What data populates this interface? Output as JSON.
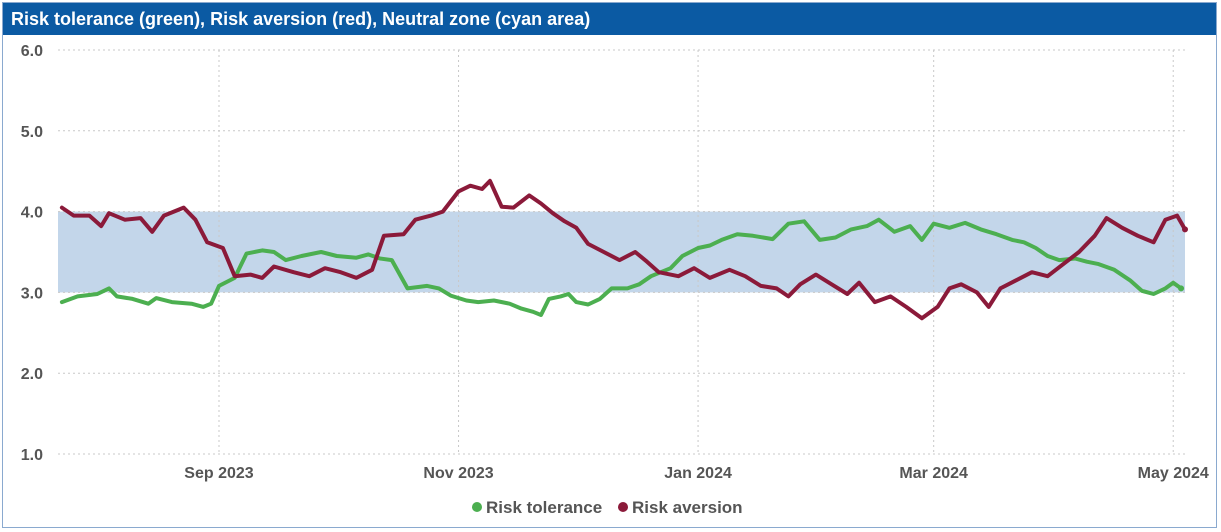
{
  "title": "Risk tolerance (green), Risk aversion (red), Neutral zone (cyan area)",
  "colors": {
    "title_bg": "#0b5aa3",
    "risk_tolerance": "#4caf50",
    "risk_aversion": "#8b1a3a",
    "neutral_zone": "#c3d6ea",
    "grid": "#c8c8c8"
  },
  "legend": [
    "Risk tolerance",
    "Risk aversion"
  ],
  "chart_data": {
    "type": "line",
    "title": "Risk tolerance (green), Risk aversion (red), Neutral zone (cyan area)",
    "xlabel": "",
    "ylabel": "",
    "xlim": [
      "2023-07-22",
      "2024-05-04"
    ],
    "ylim": [
      1.0,
      6.0
    ],
    "yticks": [
      1.0,
      2.0,
      3.0,
      4.0,
      5.0,
      6.0
    ],
    "ytick_labels": [
      "1.0",
      "2.0",
      "3.0",
      "4.0",
      "5.0",
      "6.0"
    ],
    "xticks": [
      "2023-09-01",
      "2023-11-01",
      "2024-01-01",
      "2024-03-01",
      "2024-05-01"
    ],
    "xtick_labels": [
      "Sep 2023",
      "Nov 2023",
      "Jan 2024",
      "Mar 2024",
      "May 2024"
    ],
    "grid": "dotted",
    "legend_position": "bottom-center",
    "bands": [
      {
        "name": "Neutral zone",
        "from": 3.0,
        "to": 4.0
      }
    ],
    "series": [
      {
        "name": "Risk tolerance",
        "points": [
          [
            "2023-07-23",
            2.88
          ],
          [
            "2023-07-27",
            2.95
          ],
          [
            "2023-08-01",
            2.98
          ],
          [
            "2023-08-04",
            3.05
          ],
          [
            "2023-08-06",
            2.95
          ],
          [
            "2023-08-10",
            2.92
          ],
          [
            "2023-08-14",
            2.86
          ],
          [
            "2023-08-16",
            2.93
          ],
          [
            "2023-08-20",
            2.88
          ],
          [
            "2023-08-25",
            2.86
          ],
          [
            "2023-08-28",
            2.82
          ],
          [
            "2023-08-30",
            2.86
          ],
          [
            "2023-09-01",
            3.08
          ],
          [
            "2023-09-05",
            3.18
          ],
          [
            "2023-09-08",
            3.48
          ],
          [
            "2023-09-12",
            3.52
          ],
          [
            "2023-09-15",
            3.5
          ],
          [
            "2023-09-18",
            3.4
          ],
          [
            "2023-09-22",
            3.45
          ],
          [
            "2023-09-27",
            3.5
          ],
          [
            "2023-10-01",
            3.45
          ],
          [
            "2023-10-06",
            3.43
          ],
          [
            "2023-10-09",
            3.47
          ],
          [
            "2023-10-12",
            3.42
          ],
          [
            "2023-10-15",
            3.4
          ],
          [
            "2023-10-19",
            3.05
          ],
          [
            "2023-10-24",
            3.08
          ],
          [
            "2023-10-27",
            3.05
          ],
          [
            "2023-10-30",
            2.96
          ],
          [
            "2023-11-03",
            2.9
          ],
          [
            "2023-11-06",
            2.88
          ],
          [
            "2023-11-10",
            2.9
          ],
          [
            "2023-11-14",
            2.86
          ],
          [
            "2023-11-17",
            2.8
          ],
          [
            "2023-11-20",
            2.76
          ],
          [
            "2023-11-22",
            2.72
          ],
          [
            "2023-11-24",
            2.92
          ],
          [
            "2023-11-27",
            2.95
          ],
          [
            "2023-11-29",
            2.98
          ],
          [
            "2023-12-01",
            2.88
          ],
          [
            "2023-12-04",
            2.85
          ],
          [
            "2023-12-07",
            2.92
          ],
          [
            "2023-12-10",
            3.05
          ],
          [
            "2023-12-14",
            3.05
          ],
          [
            "2023-12-17",
            3.1
          ],
          [
            "2023-12-20",
            3.2
          ],
          [
            "2023-12-25",
            3.3
          ],
          [
            "2023-12-28",
            3.45
          ],
          [
            "2024-01-01",
            3.55
          ],
          [
            "2024-01-04",
            3.58
          ],
          [
            "2024-01-07",
            3.65
          ],
          [
            "2024-01-11",
            3.72
          ],
          [
            "2024-01-15",
            3.7
          ],
          [
            "2024-01-20",
            3.66
          ],
          [
            "2024-01-24",
            3.85
          ],
          [
            "2024-01-28",
            3.88
          ],
          [
            "2024-02-01",
            3.65
          ],
          [
            "2024-02-05",
            3.68
          ],
          [
            "2024-02-09",
            3.78
          ],
          [
            "2024-02-13",
            3.82
          ],
          [
            "2024-02-16",
            3.9
          ],
          [
            "2024-02-20",
            3.75
          ],
          [
            "2024-02-24",
            3.82
          ],
          [
            "2024-02-27",
            3.65
          ],
          [
            "2024-03-01",
            3.85
          ],
          [
            "2024-03-05",
            3.8
          ],
          [
            "2024-03-09",
            3.86
          ],
          [
            "2024-03-13",
            3.78
          ],
          [
            "2024-03-17",
            3.72
          ],
          [
            "2024-03-21",
            3.65
          ],
          [
            "2024-03-24",
            3.62
          ],
          [
            "2024-03-27",
            3.55
          ],
          [
            "2024-03-30",
            3.45
          ],
          [
            "2024-04-02",
            3.4
          ],
          [
            "2024-04-06",
            3.42
          ],
          [
            "2024-04-09",
            3.38
          ],
          [
            "2024-04-12",
            3.35
          ],
          [
            "2024-04-16",
            3.28
          ],
          [
            "2024-04-20",
            3.15
          ],
          [
            "2024-04-23",
            3.02
          ],
          [
            "2024-04-26",
            2.98
          ],
          [
            "2024-04-29",
            3.05
          ],
          [
            "2024-05-01",
            3.12
          ],
          [
            "2024-05-03",
            3.05
          ]
        ]
      },
      {
        "name": "Risk aversion",
        "points": [
          [
            "2023-07-23",
            4.05
          ],
          [
            "2023-07-26",
            3.95
          ],
          [
            "2023-07-30",
            3.95
          ],
          [
            "2023-08-02",
            3.82
          ],
          [
            "2023-08-04",
            3.98
          ],
          [
            "2023-08-08",
            3.9
          ],
          [
            "2023-08-12",
            3.92
          ],
          [
            "2023-08-15",
            3.75
          ],
          [
            "2023-08-18",
            3.95
          ],
          [
            "2023-08-23",
            4.05
          ],
          [
            "2023-08-26",
            3.9
          ],
          [
            "2023-08-29",
            3.62
          ],
          [
            "2023-09-02",
            3.55
          ],
          [
            "2023-09-05",
            3.2
          ],
          [
            "2023-09-09",
            3.22
          ],
          [
            "2023-09-12",
            3.18
          ],
          [
            "2023-09-15",
            3.32
          ],
          [
            "2023-09-20",
            3.25
          ],
          [
            "2023-09-24",
            3.2
          ],
          [
            "2023-09-28",
            3.3
          ],
          [
            "2023-10-02",
            3.25
          ],
          [
            "2023-10-06",
            3.18
          ],
          [
            "2023-10-10",
            3.28
          ],
          [
            "2023-10-13",
            3.7
          ],
          [
            "2023-10-18",
            3.72
          ],
          [
            "2023-10-21",
            3.9
          ],
          [
            "2023-10-25",
            3.95
          ],
          [
            "2023-10-28",
            4.0
          ],
          [
            "2023-11-01",
            4.25
          ],
          [
            "2023-11-04",
            4.32
          ],
          [
            "2023-11-07",
            4.28
          ],
          [
            "2023-11-09",
            4.38
          ],
          [
            "2023-11-12",
            4.06
          ],
          [
            "2023-11-15",
            4.05
          ],
          [
            "2023-11-19",
            4.2
          ],
          [
            "2023-11-22",
            4.1
          ],
          [
            "2023-11-25",
            3.98
          ],
          [
            "2023-11-28",
            3.88
          ],
          [
            "2023-12-01",
            3.8
          ],
          [
            "2023-12-04",
            3.6
          ],
          [
            "2023-12-08",
            3.5
          ],
          [
            "2023-12-12",
            3.4
          ],
          [
            "2023-12-16",
            3.5
          ],
          [
            "2023-12-19",
            3.38
          ],
          [
            "2023-12-22",
            3.25
          ],
          [
            "2023-12-27",
            3.2
          ],
          [
            "2023-12-31",
            3.3
          ],
          [
            "2024-01-04",
            3.18
          ],
          [
            "2024-01-09",
            3.28
          ],
          [
            "2024-01-13",
            3.2
          ],
          [
            "2024-01-17",
            3.08
          ],
          [
            "2024-01-21",
            3.05
          ],
          [
            "2024-01-24",
            2.95
          ],
          [
            "2024-01-27",
            3.1
          ],
          [
            "2024-01-31",
            3.22
          ],
          [
            "2024-02-04",
            3.1
          ],
          [
            "2024-02-08",
            2.98
          ],
          [
            "2024-02-11",
            3.12
          ],
          [
            "2024-02-15",
            2.88
          ],
          [
            "2024-02-19",
            2.95
          ],
          [
            "2024-02-23",
            2.82
          ],
          [
            "2024-02-27",
            2.68
          ],
          [
            "2024-03-02",
            2.82
          ],
          [
            "2024-03-05",
            3.05
          ],
          [
            "2024-03-08",
            3.1
          ],
          [
            "2024-03-12",
            3.0
          ],
          [
            "2024-03-15",
            2.82
          ],
          [
            "2024-03-18",
            3.05
          ],
          [
            "2024-03-22",
            3.15
          ],
          [
            "2024-03-26",
            3.25
          ],
          [
            "2024-03-30",
            3.2
          ],
          [
            "2024-04-03",
            3.35
          ],
          [
            "2024-04-07",
            3.5
          ],
          [
            "2024-04-11",
            3.7
          ],
          [
            "2024-04-14",
            3.92
          ],
          [
            "2024-04-18",
            3.8
          ],
          [
            "2024-04-22",
            3.7
          ],
          [
            "2024-04-26",
            3.62
          ],
          [
            "2024-04-29",
            3.9
          ],
          [
            "2024-05-02",
            3.95
          ],
          [
            "2024-05-04",
            3.78
          ]
        ]
      }
    ]
  }
}
